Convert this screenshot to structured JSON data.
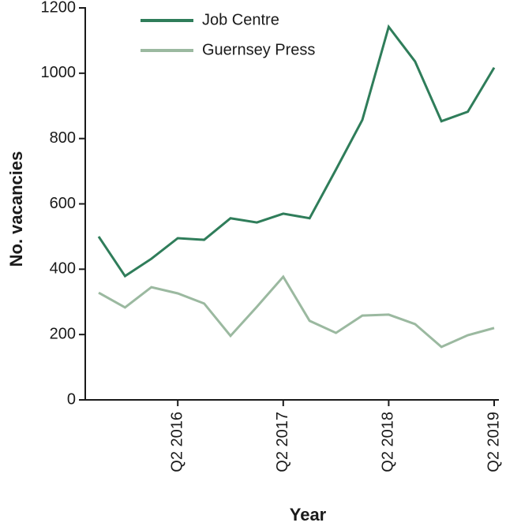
{
  "chart_data": {
    "type": "line",
    "x_label": "Year",
    "y_label": "No. vacancies",
    "categories": [
      null,
      null,
      null,
      "Q2 2016",
      null,
      null,
      null,
      "Q2 2017",
      null,
      null,
      null,
      "Q2 2018",
      null,
      null,
      null,
      "Q2 2019"
    ],
    "series": [
      {
        "name": "Job Centre",
        "color": "#2f7d5a",
        "values": [
          500,
          379,
          432,
          495,
          490,
          556,
          543,
          570,
          556,
          705,
          857,
          1142,
          1036,
          853,
          882,
          1017
        ]
      },
      {
        "name": "Guernsey Press",
        "color": "#9bb9a0",
        "values": [
          328,
          283,
          345,
          326,
          295,
          196,
          285,
          377,
          242,
          205,
          258,
          261,
          232,
          162,
          198,
          220
        ]
      }
    ],
    "ylim": [
      0,
      1200
    ],
    "yticks": [
      0,
      200,
      400,
      600,
      800,
      1000,
      1200
    ],
    "legend": "top"
  }
}
